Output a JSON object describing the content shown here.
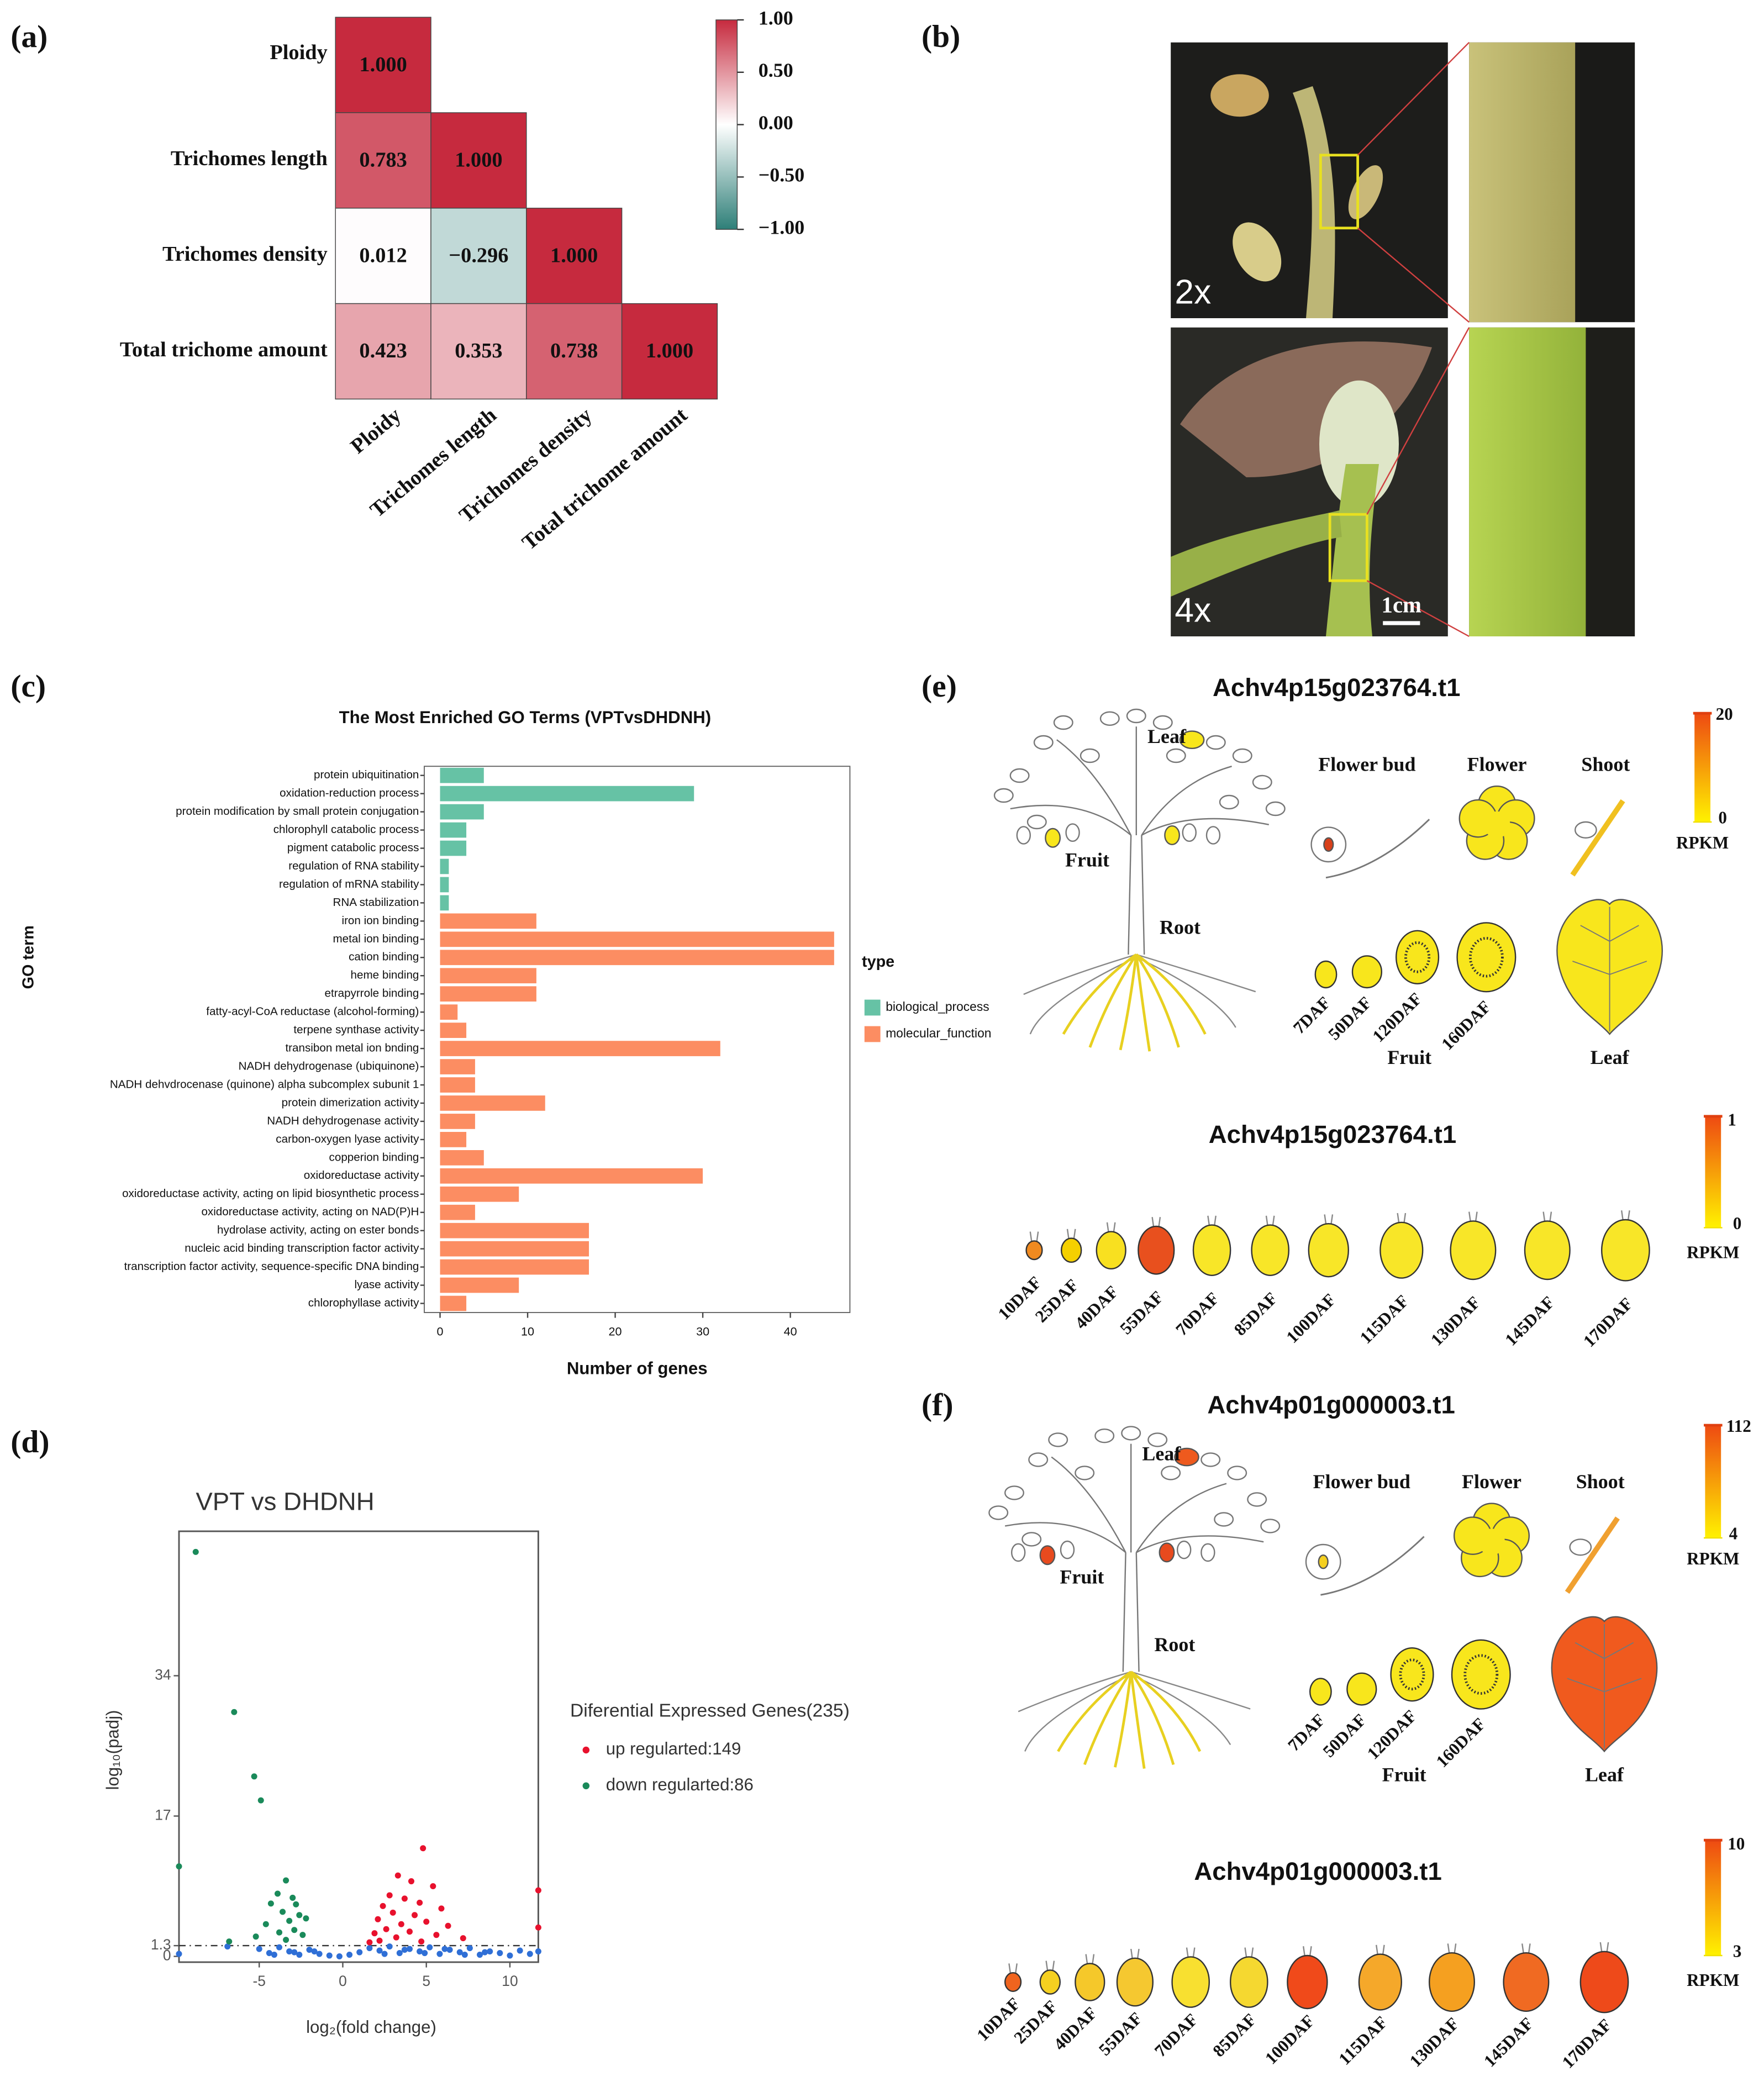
{
  "panel_labels": [
    "(a)",
    "(b)",
    "(c)",
    "(d)",
    "(e)",
    "(f)"
  ],
  "chart_data": [
    {
      "type": "heatmap",
      "variables": [
        "Ploidy",
        "Trichomes length",
        "Trichomes density",
        "Total trichome amount"
      ],
      "values": [
        [
          1
        ],
        [
          0.783,
          1
        ],
        [
          0.012,
          -0.296,
          1
        ],
        [
          0.423,
          0.353,
          0.738,
          1
        ]
      ],
      "value_labels": [
        [
          "1.000"
        ],
        [
          "0.783",
          "1.000"
        ],
        [
          "0.012",
          "−0.296",
          "1.000"
        ],
        [
          "0.423",
          "0.353",
          "0.738",
          "1.000"
        ]
      ],
      "colorbar_lim": [
        -1,
        1
      ],
      "colorbar_ticks": [
        {
          "value": 1,
          "label": "1.00"
        },
        {
          "value": 0.5,
          "label": "0.50"
        },
        {
          "value": 0,
          "label": "0.00"
        },
        {
          "value": -0.5,
          "label": "−0.50"
        },
        {
          "value": -1,
          "label": "−1.00"
        }
      ],
      "colors": {
        "high": "#c62a3e",
        "mid": "#ffffff",
        "low": "#2e7f78"
      }
    },
    {
      "type": "barh",
      "title": "The Most Enriched GO Terms (VPTvsDHDNH)",
      "xlabel": "Number of genes",
      "ylabel": "GO term",
      "legend_title": "type",
      "categories": [
        "protein ubiquitination",
        "oxidation-reduction process",
        "protein modification by small protein conjugation",
        "chlorophyll catabolic process",
        "pigment catabolic process",
        "regulation of RNA stability",
        "regulation of mRNA stability",
        "RNA stabilization",
        "iron ion binding",
        "metal ion binding",
        "cation binding",
        "heme binding",
        "etrapyrrole binding",
        "fatty-acyl-CoA reductase (alcohol-forming)",
        "terpene synthase activity",
        "transibon metal ion bnding",
        "NADH dehydrogenase (ubiquinone)",
        "NADH dehvdrocenase (quinone) alpha subcomplex subunit 1",
        "protein dimerization activity",
        "NADH dehydrogenase activity",
        "carbon-oxygen lyase activity",
        "copperion binding",
        "oxidoreductase activity",
        "oxidoreductase activity, acting on lipid biosynthetic process",
        "oxidoreductase activity, acting on NAD(P)H",
        "hydrolase activity, acting on ester bonds",
        "nucleic acid binding transcription factor activity",
        "transcription factor activity, sequence-specific DNA binding",
        "lyase activity",
        "chlorophyllase activity"
      ],
      "series": [
        {
          "name": "biological_process",
          "color": "#66c2a5",
          "values": [
            5,
            29,
            5,
            3,
            3,
            1,
            1,
            1,
            null,
            null,
            null,
            null,
            null,
            null,
            null,
            null,
            null,
            null,
            null,
            null,
            null,
            null,
            null,
            null,
            null,
            null,
            null,
            null,
            null,
            null
          ]
        },
        {
          "name": "molecular_function",
          "color": "#fc8d62",
          "values": [
            null,
            null,
            null,
            null,
            null,
            null,
            null,
            null,
            11,
            45,
            45,
            11,
            11,
            2,
            3,
            32,
            4,
            4,
            12,
            4,
            3,
            5,
            30,
            9,
            4,
            17,
            17,
            17,
            9,
            3
          ]
        }
      ],
      "xlim": [
        -1.8,
        46.8
      ],
      "xticks": [
        0,
        10,
        20,
        30,
        40
      ],
      "legend": "right"
    },
    {
      "type": "scatter",
      "title": "VPT vs DHDNH",
      "xlabel": "log₂(fold change)",
      "ylabel": "log₁₀(padj)",
      "legend_title": "Diferential Expressed Genes(235)",
      "xlim": [
        -9.8,
        11.7
      ],
      "ylim": [
        -0.7,
        51.5
      ],
      "xticks": [
        -5,
        0,
        5,
        10
      ],
      "yticks": [
        0,
        1.3,
        17,
        34
      ],
      "hline": 1.3,
      "series": [
        {
          "color": "#2f6fd6",
          "x": [
            -5.0,
            -4.4,
            -3.8,
            -3.2,
            -2.6,
            -2.0,
            -1.4,
            -0.8,
            -0.2,
            0.4,
            1.0,
            1.6,
            2.2,
            2.8,
            3.4,
            4.0,
            4.6,
            5.2,
            5.8,
            6.4,
            7.0,
            7.6,
            8.2,
            8.8,
            9.4,
            10.0,
            10.6,
            11.2,
            -4.1,
            -2.9,
            -1.7,
            2.5,
            3.7,
            4.9,
            6.1,
            7.3,
            8.5,
            -6.9,
            -9.8,
            11.7
          ],
          "values": [
            0.9,
            0.4,
            1.1,
            0.6,
            0.2,
            0.8,
            0.3,
            0.1,
            0.0,
            0.2,
            0.5,
            1.0,
            0.7,
            1.2,
            0.4,
            0.9,
            0.6,
            1.1,
            0.3,
            0.8,
            0.5,
            1.0,
            0.2,
            0.6,
            0.4,
            0.1,
            0.7,
            0.3,
            0.2,
            0.5,
            0.6,
            0.3,
            0.8,
            0.4,
            0.9,
            0.2,
            0.5,
            1.2,
            0.3,
            0.6
          ]
        },
        {
          "name": "down regularted:86",
          "color": "#1a8a5a",
          "x": [
            -8.8,
            -6.5,
            -5.3,
            -4.9,
            -9.8,
            -3.4,
            -3.9,
            -3.0,
            -2.8,
            -4.3,
            -3.6,
            -2.6,
            -3.2,
            -2.2,
            -4.6,
            -2.9,
            -3.8,
            -2.4,
            -5.2,
            -3.4,
            -6.8
          ],
          "values": [
            49,
            29.6,
            21.8,
            18.9,
            10.9,
            9.2,
            7.6,
            7.1,
            6.3,
            6.4,
            5.4,
            5.0,
            4.3,
            4.6,
            3.9,
            3.2,
            2.9,
            2.6,
            2.4,
            2.0,
            1.8
          ]
        },
        {
          "name": "up regularted:149",
          "color": "#e8112d",
          "x": [
            4.8,
            3.3,
            4.1,
            5.4,
            2.8,
            3.7,
            4.6,
            2.4,
            5.9,
            3.0,
            4.3,
            2.1,
            5.0,
            3.5,
            6.3,
            2.6,
            4.0,
            1.9,
            5.6,
            3.2,
            7.2,
            2.2,
            4.7,
            1.6,
            11.7,
            11.7
          ],
          "values": [
            13.1,
            9.8,
            9.1,
            8.5,
            7.4,
            7.0,
            6.5,
            6.1,
            5.8,
            5.3,
            5.0,
            4.5,
            4.2,
            3.9,
            3.7,
            3.3,
            3.0,
            2.8,
            2.6,
            2.3,
            2.2,
            1.9,
            1.8,
            1.7,
            8.0,
            3.5
          ]
        }
      ]
    }
  ],
  "photo": {
    "labels": [
      "2x",
      "4x"
    ],
    "scale": "1cm"
  },
  "expression": [
    {
      "title": "Achv4p15g023764.t1",
      "tissue_labels": [
        "Leaf",
        "Flower bud",
        "Flower",
        "Shoot",
        "Fruit",
        "Root"
      ],
      "stages": [
        "7DAF",
        "50DAF",
        "120DAF",
        "160DAF"
      ],
      "group_labels": [
        "Fruit",
        "Leaf"
      ],
      "colorbar": {
        "max": 20,
        "min": 0,
        "unit": "RPKM"
      },
      "colors": {
        "leaf": "#f8e61c",
        "bud": "#d8401a",
        "flower": "#f8e61c",
        "shoot": "#f0c020",
        "fruit": "#f8e61c",
        "root": "#e8d020",
        "fruits": [
          "#f8e61c",
          "#f8e61c",
          "#f8e61c",
          "#f8e61c"
        ],
        "big_leaf": "#f8e61c"
      },
      "series_title": "Achv4p15g023764.t1",
      "series_stages": [
        "10DAF",
        "25DAF",
        "40DAF",
        "55DAF",
        "70DAF",
        "85DAF",
        "100DAF",
        "115DAF",
        "130DAF",
        "145DAF",
        "170DAF"
      ],
      "series_colors": [
        "#f08a20",
        "#f5d000",
        "#f8e020",
        "#e8501e",
        "#f8e628",
        "#f8e628",
        "#f8e628",
        "#f8e628",
        "#f8e628",
        "#f8e628",
        "#f8e628"
      ],
      "series_colorbar": {
        "max": 1,
        "min": 0,
        "unit": "RPKM"
      }
    },
    {
      "title": "Achv4p01g000003.t1",
      "tissue_labels": [
        "Leaf",
        "Flower bud",
        "Flower",
        "Shoot",
        "Fruit",
        "Root"
      ],
      "stages": [
        "7DAF",
        "50DAF",
        "120DAF",
        "160DAF"
      ],
      "group_labels": [
        "Fruit",
        "Leaf"
      ],
      "colorbar": {
        "max": 112,
        "min": 4,
        "unit": "RPKM"
      },
      "colors": {
        "leaf": "#ee5a1e",
        "bud": "#f5d020",
        "flower": "#f8e61c",
        "shoot": "#f0a030",
        "fruit": "#e84a1e",
        "root": "#e8d020",
        "fruits": [
          "#f8e61c",
          "#f8e61c",
          "#f8e61c",
          "#f8e61c"
        ],
        "big_leaf": "#f05a1e"
      },
      "series_title": "Achv4p01g000003.t1",
      "series_stages": [
        "10DAF",
        "25DAF",
        "40DAF",
        "55DAF",
        "70DAF",
        "85DAF",
        "100DAF",
        "115DAF",
        "130DAF",
        "145DAF",
        "170DAF"
      ],
      "series_colors": [
        "#f0641e",
        "#f5d020",
        "#f5c82a",
        "#f5c830",
        "#f8e030",
        "#f5d830",
        "#f04a1a",
        "#f5a82a",
        "#f5a020",
        "#f06a22",
        "#ee4a1a"
      ],
      "series_colorbar": {
        "max": 10,
        "min": 3,
        "unit": "RPKM"
      }
    }
  ]
}
